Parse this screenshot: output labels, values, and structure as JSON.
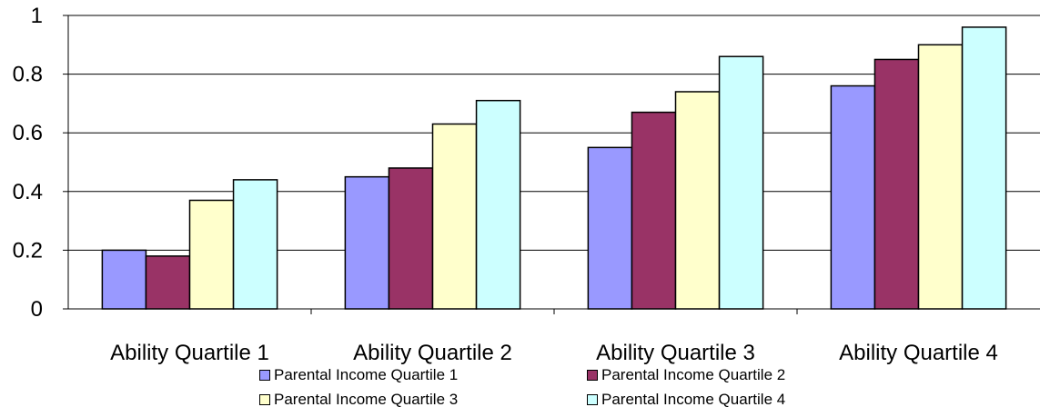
{
  "chart_data": {
    "type": "bar",
    "title": "",
    "xlabel": "",
    "ylabel": "",
    "ylim": [
      0,
      1
    ],
    "yticks": [
      "0",
      "0.2",
      "0.4",
      "0.6",
      "0.8",
      "1"
    ],
    "grid": true,
    "legend_position": "bottom",
    "categories": [
      "Ability Quartile 1",
      "Ability Quartile 2",
      "Ability Quartile 3",
      "Ability Quartile 4"
    ],
    "series": [
      {
        "name": "Parental Income Quartile 1",
        "color": "#9999ff",
        "values": [
          0.2,
          0.45,
          0.55,
          0.76
        ]
      },
      {
        "name": "Parental Income Quartile 2",
        "color": "#993366",
        "values": [
          0.18,
          0.48,
          0.67,
          0.85
        ]
      },
      {
        "name": "Parental Income Quartile 3",
        "color": "#ffffcc",
        "values": [
          0.37,
          0.63,
          0.74,
          0.9
        ]
      },
      {
        "name": "Parental Income Quartile 4",
        "color": "#ccffff",
        "values": [
          0.44,
          0.71,
          0.86,
          0.96
        ]
      }
    ]
  }
}
